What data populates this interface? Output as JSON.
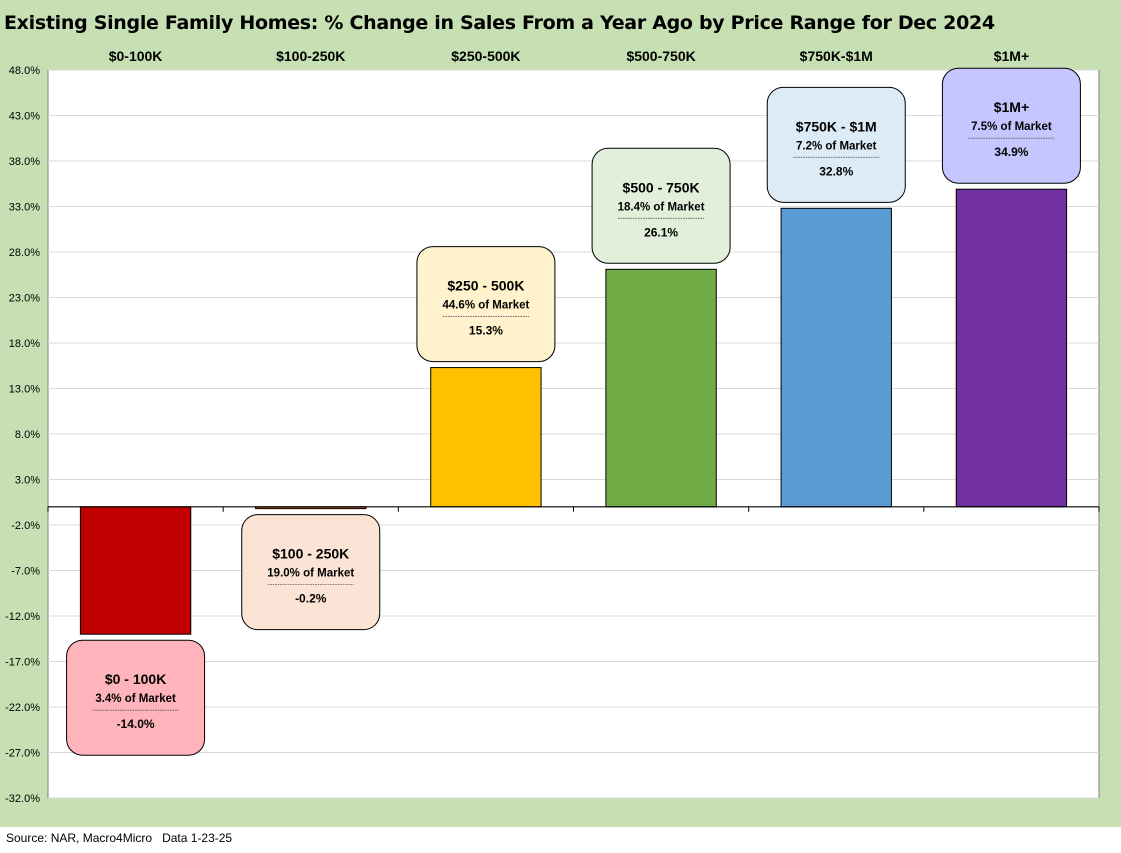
{
  "chart_data": {
    "type": "bar",
    "title": "Existing Single Family Homes: % Change in Sales From a Year Ago by Price Range for Dec 2024",
    "source": "Source: NAR, Macro4Micro",
    "data_date": "Data 1-23-25",
    "categories": [
      "$0-100K",
      "$100-250K",
      "$250-500K",
      "$500-750K",
      "$750K-$1M",
      "$1M+"
    ],
    "values": [
      -14.0,
      -0.2,
      15.3,
      26.1,
      32.8,
      34.9
    ],
    "bar_colors": [
      "#c00000",
      "#c55a11",
      "#ffc000",
      "#70ad47",
      "#5b9bd5",
      "#7030a0"
    ],
    "callouts": [
      {
        "label": "$0 - 100K",
        "share": "3.4% of Market",
        "value": "-14.0%",
        "fill": "#ffb3ba"
      },
      {
        "label": "$100 - 250K",
        "share": "19.0% of Market",
        "value": "-0.2%",
        "fill": "#fbe4d5"
      },
      {
        "label": "$250 - 500K",
        "share": "44.6% of Market",
        "value": "15.3%",
        "fill": "#fff2cc"
      },
      {
        "label": "$500 - 750K",
        "share": "18.4% of Market",
        "value": "26.1%",
        "fill": "#e2efda"
      },
      {
        "label": "$750K - $1M",
        "share": "7.2% of Market",
        "value": "32.8%",
        "fill": "#ddebf7"
      },
      {
        "label": "$1M+",
        "share": "7.5% of Market",
        "value": "34.9%",
        "fill": "#c5c5ff"
      }
    ],
    "ylim": [
      -32,
      48
    ],
    "yticks": [
      "-32.0%",
      "-27.0%",
      "-22.0%",
      "-17.0%",
      "-12.0%",
      "-7.0%",
      "-2.0%",
      "3.0%",
      "8.0%",
      "13.0%",
      "18.0%",
      "23.0%",
      "28.0%",
      "33.0%",
      "38.0%",
      "43.0%",
      "48.0%"
    ],
    "grid": true,
    "legend": "none",
    "background_color": "#c6e0b4"
  }
}
